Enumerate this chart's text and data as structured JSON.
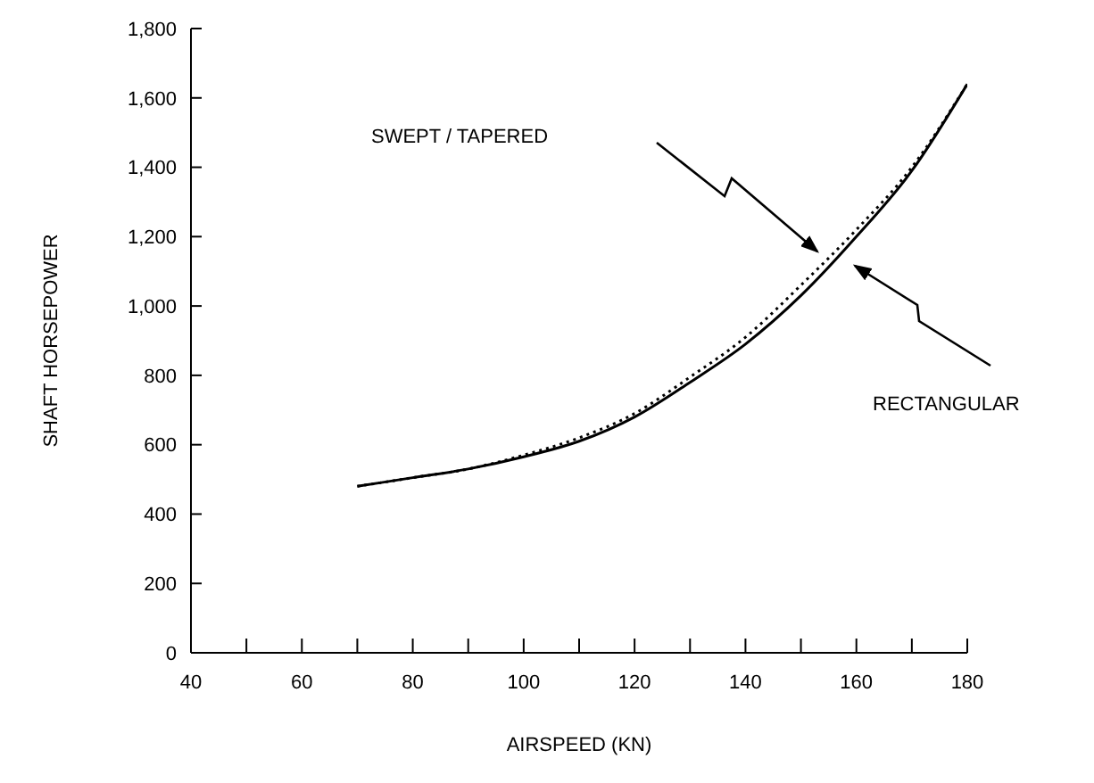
{
  "chart_data": {
    "type": "line",
    "xlabel": "AIRSPEED (KN)",
    "ylabel": "SHAFT HORSEPOWER",
    "xlim": [
      40,
      180
    ],
    "xticks": [
      40,
      {
        "value": 50,
        "label": null
      },
      60,
      {
        "value": 70,
        "label": null
      },
      80,
      {
        "value": 90,
        "label": null
      },
      100,
      {
        "value": 110,
        "label": null
      },
      120,
      {
        "value": 130,
        "label": null
      },
      140,
      {
        "value": 150,
        "label": null
      },
      160,
      {
        "value": 170,
        "label": null
      },
      180
    ],
    "ylim": [
      0,
      1800
    ],
    "yticks": [
      0,
      200,
      400,
      600,
      800,
      {
        "value": 1000,
        "label": "1,000"
      },
      {
        "value": 1200,
        "label": "1,200"
      },
      {
        "value": 1400,
        "label": "1,400"
      },
      {
        "value": 1600,
        "label": "1,600"
      },
      {
        "value": 1800,
        "label": "1,800"
      }
    ],
    "marker": "none",
    "annotations": [
      "SWEPT / TAPERED",
      "RECTANGULAR"
    ],
    "x": [
      70,
      80,
      90,
      100,
      110,
      120,
      130,
      140,
      150,
      160,
      170,
      180
    ],
    "series": [
      {
        "color": "#000000",
        "line_style": "dotted",
        "values": [
          480,
          505,
          530,
          570,
          620,
          690,
          795,
          910,
          1060,
          1220,
          1400,
          1640
        ]
      },
      {
        "color": "#000000",
        "line_style": "solid",
        "values": [
          480,
          505,
          530,
          565,
          610,
          680,
          780,
          890,
          1030,
          1200,
          1390,
          1640
        ]
      }
    ]
  }
}
